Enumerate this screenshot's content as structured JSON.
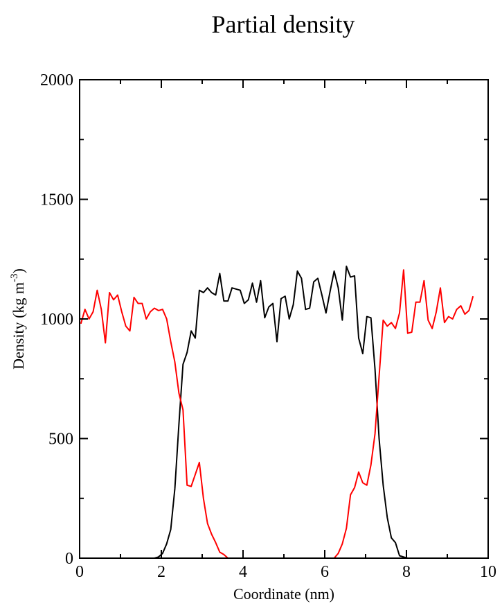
{
  "chart_data": {
    "type": "line",
    "title": "Partial density",
    "xlabel": "Coordinate (nm)",
    "ylabel": {
      "text": "Density (kg m",
      "superscript": "-3",
      "close": ")"
    },
    "xlim": [
      0,
      10
    ],
    "ylim": [
      0,
      2000
    ],
    "x_ticks": [
      0,
      2,
      4,
      6,
      8,
      10
    ],
    "x_tick_labels": [
      "0",
      "2",
      "4",
      "6",
      "8",
      "10"
    ],
    "x_minor_ticks": [
      1,
      3,
      5,
      7,
      9
    ],
    "y_ticks": [
      0,
      500,
      1000,
      1500,
      2000
    ],
    "y_tick_labels": [
      "0",
      "500",
      "1000",
      "1500",
      "2000"
    ],
    "y_minor_ticks": [
      250,
      750,
      1250,
      1750
    ],
    "grid": false,
    "series": [
      {
        "color": "#000000",
        "x": [
          1.83,
          1.93,
          2.03,
          2.13,
          2.23,
          2.33,
          2.43,
          2.53,
          2.63,
          2.73,
          2.83,
          2.93,
          3.03,
          3.13,
          3.23,
          3.33,
          3.43,
          3.53,
          3.63,
          3.73,
          3.83,
          3.93,
          4.03,
          4.13,
          4.23,
          4.33,
          4.43,
          4.53,
          4.63,
          4.73,
          4.83,
          4.93,
          5.03,
          5.13,
          5.23,
          5.33,
          5.43,
          5.53,
          5.63,
          5.73,
          5.83,
          5.93,
          6.03,
          6.13,
          6.23,
          6.33,
          6.43,
          6.53,
          6.63,
          6.73,
          6.83,
          6.93,
          7.03,
          7.13,
          7.23,
          7.33,
          7.43,
          7.53,
          7.63,
          7.73,
          7.83,
          7.93,
          8.03
        ],
        "y": [
          0,
          5,
          20,
          60,
          120,
          290,
          560,
          810,
          860,
          950,
          920,
          1120,
          1110,
          1130,
          1110,
          1100,
          1190,
          1075,
          1075,
          1130,
          1125,
          1120,
          1065,
          1080,
          1150,
          1070,
          1160,
          1005,
          1050,
          1065,
          905,
          1085,
          1095,
          1000,
          1060,
          1200,
          1170,
          1040,
          1045,
          1155,
          1170,
          1100,
          1025,
          1115,
          1200,
          1130,
          995,
          1220,
          1175,
          1180,
          920,
          855,
          1010,
          1005,
          790,
          500,
          305,
          170,
          85,
          65,
          10,
          5,
          0
        ]
      },
      {
        "color": "#ff0000",
        "x": [
          0.03,
          0.13,
          0.23,
          0.33,
          0.43,
          0.53,
          0.63,
          0.73,
          0.83,
          0.93,
          1.03,
          1.13,
          1.23,
          1.33,
          1.43,
          1.53,
          1.63,
          1.73,
          1.83,
          1.93,
          2.03,
          2.13,
          2.23,
          2.33,
          2.43,
          2.53,
          2.63,
          2.73,
          2.83,
          2.93,
          3.03,
          3.13,
          3.23,
          3.33,
          3.43,
          3.53,
          3.63,
          6.23,
          6.33,
          6.43,
          6.53,
          6.63,
          6.73,
          6.83,
          6.93,
          7.03,
          7.13,
          7.23,
          7.33,
          7.43,
          7.53,
          7.63,
          7.73,
          7.83,
          7.93,
          8.03,
          8.13,
          8.23,
          8.33,
          8.43,
          8.53,
          8.63,
          8.73,
          8.83,
          8.93,
          9.03,
          9.13,
          9.23,
          9.33,
          9.43,
          9.53,
          9.63
        ],
        "y": [
          980,
          1040,
          1000,
          1030,
          1120,
          1040,
          900,
          1110,
          1080,
          1100,
          1030,
          970,
          950,
          1090,
          1065,
          1065,
          1000,
          1030,
          1045,
          1035,
          1040,
          1000,
          905,
          820,
          690,
          620,
          305,
          300,
          350,
          400,
          250,
          145,
          100,
          65,
          25,
          15,
          0,
          0,
          20,
          60,
          125,
          265,
          295,
          360,
          315,
          305,
          390,
          520,
          760,
          995,
          970,
          985,
          960,
          1025,
          1205,
          940,
          945,
          1070,
          1070,
          1160,
          995,
          960,
          1030,
          1130,
          985,
          1010,
          1000,
          1040,
          1055,
          1020,
          1035,
          1095
        ]
      }
    ]
  }
}
